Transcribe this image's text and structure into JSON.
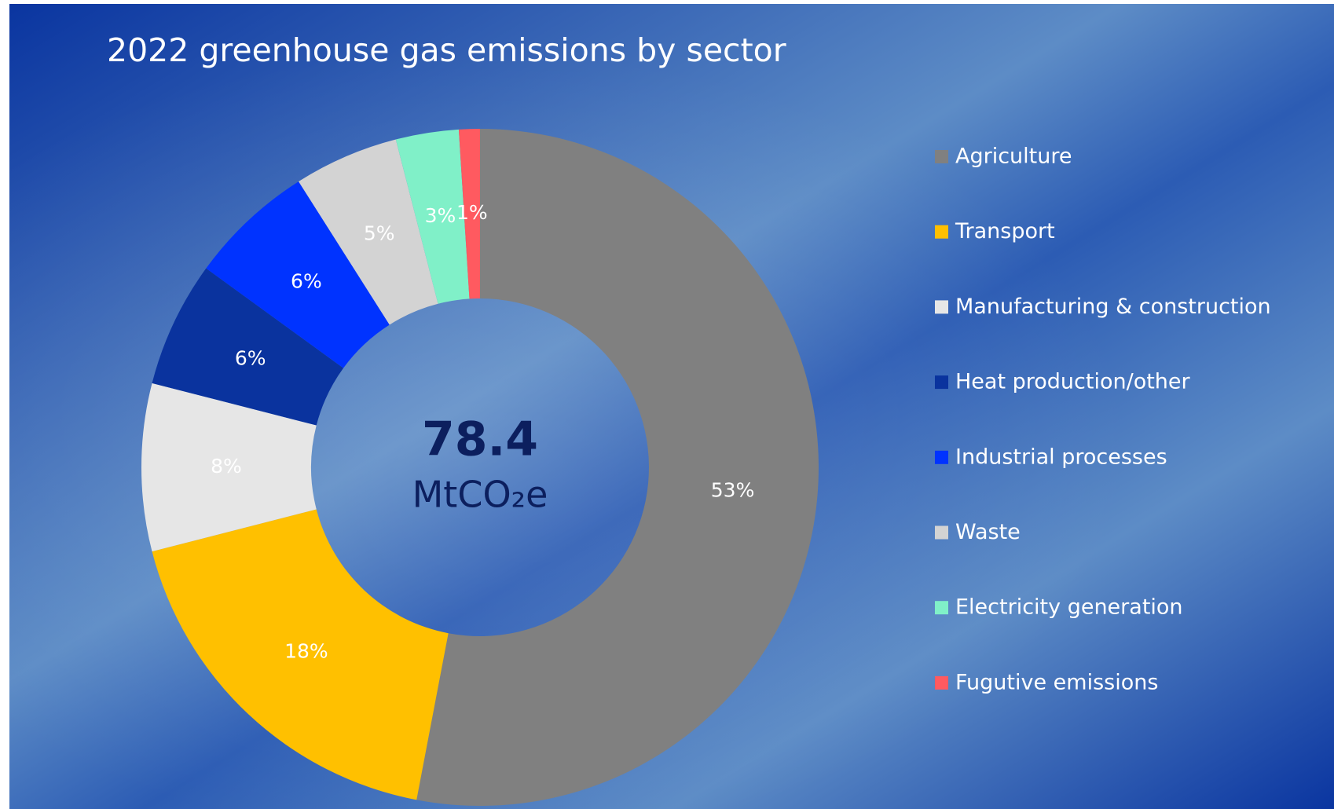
{
  "chart_data": {
    "type": "donut",
    "title": "2022 greenhouse gas emissions by sector",
    "categories": [
      "Agriculture",
      "Transport",
      "Manufacturing & construction",
      "Heat production/other",
      "Industrial processes",
      "Waste",
      "Electricity generation",
      "Fugutive emissions"
    ],
    "values": [
      53,
      18,
      8,
      6,
      6,
      5,
      3,
      1
    ],
    "value_labels": [
      "53%",
      "18%",
      "8%",
      "6%",
      "6%",
      "5%",
      "3%",
      "1%"
    ],
    "colors": [
      "#808080",
      "#ffc000",
      "#e6e6e6",
      "#0a339e",
      "#0033ff",
      "#d3d3d3",
      "#80f0c8",
      "#ff5a60"
    ],
    "center_value": 78.4,
    "center_unit": "MtCO₂e",
    "legend": "right"
  }
}
